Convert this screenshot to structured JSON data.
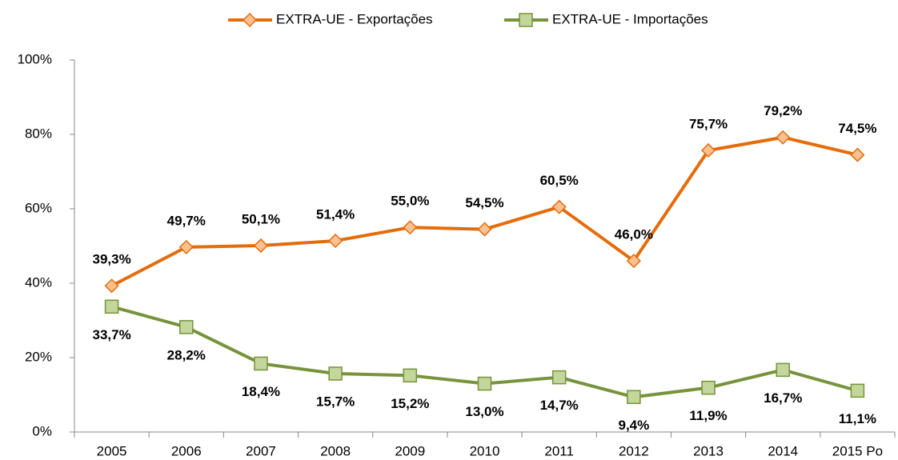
{
  "chart_data": {
    "type": "line",
    "categories": [
      "2005",
      "2006",
      "2007",
      "2008",
      "2009",
      "2010",
      "2011",
      "2012",
      "2013",
      "2014",
      "2015 Po"
    ],
    "series": [
      {
        "name": "EXTRA-UE - Exportações",
        "color": "#e46c0a",
        "marker_fill": "#fac090",
        "marker": "diamond",
        "values": [
          39.3,
          49.7,
          50.1,
          51.4,
          55.0,
          54.5,
          60.5,
          46.0,
          75.7,
          79.2,
          74.5
        ],
        "value_labels": [
          "39,3%",
          "49,7%",
          "50,1%",
          "51,4%",
          "55,0%",
          "54,5%",
          "60,5%",
          "46,0%",
          "75,7%",
          "79,2%",
          "74,5%"
        ]
      },
      {
        "name": "EXTRA-UE - Importações",
        "color": "#77933c",
        "marker_fill": "#c3d69b",
        "marker": "square",
        "values": [
          33.7,
          28.2,
          18.4,
          15.7,
          15.2,
          13.0,
          14.7,
          9.4,
          11.9,
          16.7,
          11.1
        ],
        "value_labels": [
          "33,7%",
          "28,2%",
          "18,4%",
          "15,7%",
          "15,2%",
          "13,0%",
          "14,7%",
          "9,4%",
          "11,9%",
          "16,7%",
          "11,1%"
        ]
      }
    ],
    "ylim": [
      0,
      100
    ],
    "yticks": [
      {
        "value": 0,
        "label": "0%"
      },
      {
        "value": 20,
        "label": "20%"
      },
      {
        "value": 40,
        "label": "40%"
      },
      {
        "value": 60,
        "label": "60%"
      },
      {
        "value": 80,
        "label": "80%"
      },
      {
        "value": 100,
        "label": "100%"
      }
    ],
    "legend": "top"
  }
}
